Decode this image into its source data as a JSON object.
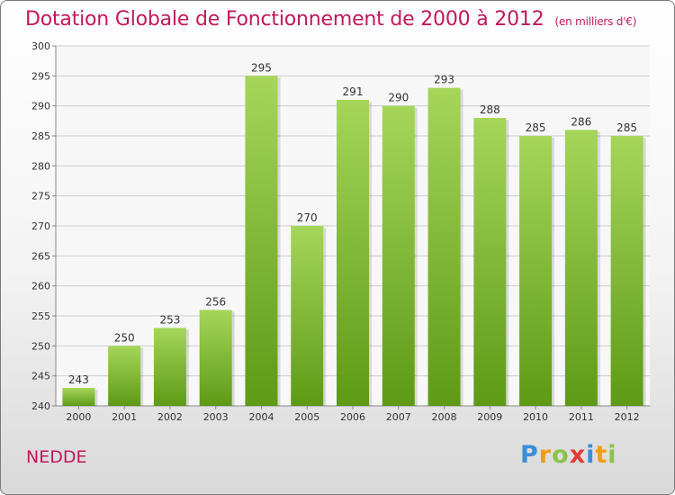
{
  "title": "Dotation Globale de Fonctionnement de 2000 à 2012",
  "subtitle": "(en milliers d'€)",
  "commune": "NEDDE",
  "logo": {
    "text": "Proxiti",
    "letters": [
      {
        "ch": "P",
        "color": "#3a8fd6"
      },
      {
        "ch": "r",
        "color": "#f39c12"
      },
      {
        "ch": "o",
        "color": "#8bc34a"
      },
      {
        "ch": "x",
        "color": "#e53935"
      },
      {
        "ch": "i",
        "color": "#3a8fd6"
      },
      {
        "ch": "t",
        "color": "#f39c12"
      },
      {
        "ch": "i",
        "color": "#8bc34a"
      }
    ]
  },
  "colors": {
    "title": "#c2185b",
    "bar_top": "#a5d65a",
    "bar_bottom": "#5e9a16",
    "grid": "#cccccc"
  },
  "chart_data": {
    "type": "bar",
    "categories": [
      "2000",
      "2001",
      "2002",
      "2003",
      "2004",
      "2005",
      "2006",
      "2007",
      "2008",
      "2009",
      "2010",
      "2011",
      "2012"
    ],
    "values": [
      243,
      250,
      253,
      256,
      295,
      270,
      291,
      290,
      293,
      288,
      285,
      286,
      285
    ],
    "ylim": [
      240,
      300
    ],
    "yticks": [
      240,
      245,
      250,
      255,
      260,
      265,
      270,
      275,
      280,
      285,
      290,
      295,
      300
    ],
    "grid": true,
    "title": "Dotation Globale de Fonctionnement de 2000 à 2012",
    "xlabel": "",
    "ylabel": ""
  }
}
